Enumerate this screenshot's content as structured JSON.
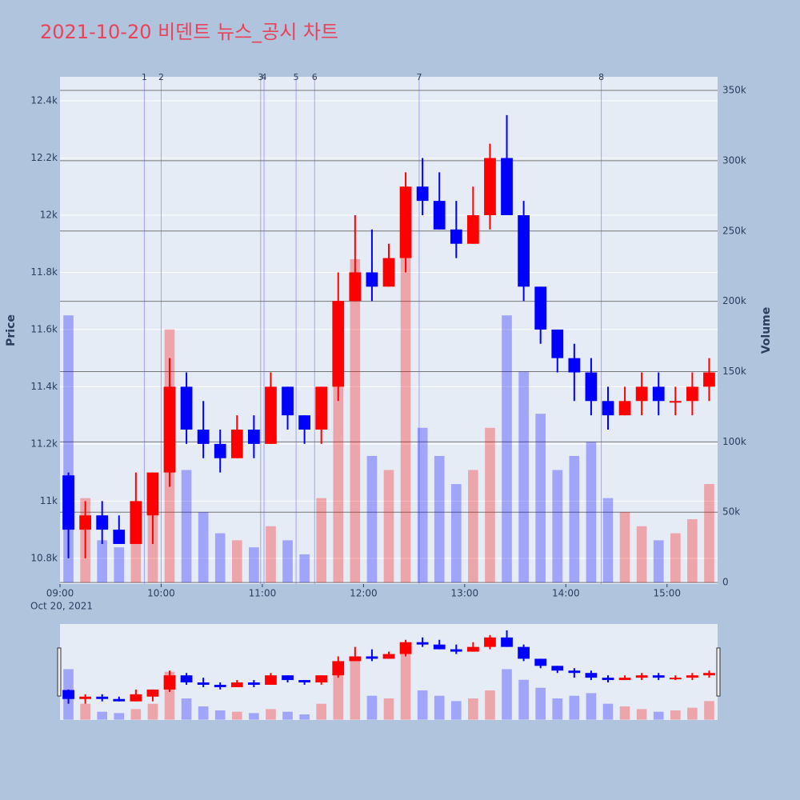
{
  "chart_data": {
    "type": "candlestick",
    "title": "2021-10-20 비덴트 뉴스_공시 차트",
    "x": [
      "09:00",
      "09:10",
      "09:20",
      "09:30",
      "09:40",
      "09:50",
      "10:00",
      "10:10",
      "10:20",
      "10:30",
      "10:40",
      "10:50",
      "11:00",
      "11:10",
      "11:20",
      "11:30",
      "11:40",
      "11:50",
      "12:00",
      "12:10",
      "12:20",
      "12:30",
      "12:40",
      "12:50",
      "13:00",
      "13:10",
      "13:20",
      "13:30",
      "13:40",
      "13:50",
      "14:00",
      "14:10",
      "14:20",
      "14:30",
      "14:40",
      "14:50",
      "15:00",
      "15:10",
      "15:20"
    ],
    "open": [
      11090,
      10900,
      10950,
      10900,
      10850,
      10950,
      11100,
      11400,
      11250,
      11200,
      11150,
      11250,
      11200,
      11400,
      11300,
      11250,
      11400,
      11700,
      11800,
      11750,
      11850,
      12100,
      12050,
      11950,
      11900,
      12000,
      12200,
      12000,
      11750,
      11600,
      11500,
      11450,
      11350,
      11300,
      11350,
      11400,
      11350,
      11350,
      11400
    ],
    "high": [
      11100,
      11000,
      11000,
      10950,
      11100,
      11100,
      11500,
      11450,
      11350,
      11250,
      11300,
      11300,
      11450,
      11400,
      11300,
      11400,
      11800,
      12000,
      11950,
      11900,
      12150,
      12200,
      12150,
      12050,
      12100,
      12250,
      12350,
      12050,
      11750,
      11600,
      11550,
      11500,
      11400,
      11400,
      11450,
      11450,
      11400,
      11450,
      11500
    ],
    "low": [
      10800,
      10800,
      10850,
      10850,
      10850,
      10850,
      11050,
      11200,
      11150,
      11100,
      11150,
      11150,
      11200,
      11250,
      11200,
      11200,
      11350,
      11700,
      11700,
      11750,
      11800,
      12000,
      11950,
      11850,
      11900,
      11950,
      12000,
      11700,
      11550,
      11450,
      11350,
      11300,
      11250,
      11300,
      11300,
      11300,
      11300,
      11300,
      11350
    ],
    "close": [
      10900,
      10950,
      10900,
      10850,
      11000,
      11100,
      11400,
      11250,
      11200,
      11150,
      11250,
      11200,
      11400,
      11300,
      11250,
      11400,
      11700,
      11800,
      11750,
      11850,
      12100,
      12050,
      11950,
      11900,
      12000,
      12200,
      12000,
      11750,
      11600,
      11500,
      11450,
      11350,
      11300,
      11350,
      11400,
      11350,
      11350,
      11400,
      11450
    ],
    "volume": [
      190000,
      60000,
      30000,
      25000,
      40000,
      60000,
      180000,
      80000,
      50000,
      35000,
      30000,
      25000,
      40000,
      30000,
      20000,
      60000,
      170000,
      230000,
      90000,
      80000,
      280000,
      110000,
      90000,
      70000,
      80000,
      110000,
      190000,
      150000,
      120000,
      80000,
      90000,
      100000,
      60000,
      50000,
      40000,
      30000,
      35000,
      45000,
      70000
    ],
    "up_color": "#ff0000",
    "down_color": "#0000ff",
    "xlim": [
      "09:00",
      "15:30"
    ],
    "xticks": [
      "09:00",
      "10:00",
      "11:00",
      "12:00",
      "13:00",
      "14:00",
      "15:00"
    ],
    "x_date": "Oct 20, 2021",
    "ylim": [
      10710,
      12484
    ],
    "yticks": [
      {
        "value": 10800,
        "label": "10.8k"
      },
      {
        "value": 11000,
        "label": "11k"
      },
      {
        "value": 11200,
        "label": "11.2k"
      },
      {
        "value": 11400,
        "label": "11.4k"
      },
      {
        "value": 11600,
        "label": "11.6k"
      },
      {
        "value": 11800,
        "label": "11.8k"
      },
      {
        "value": 12000,
        "label": "12k"
      },
      {
        "value": 12200,
        "label": "12.2k"
      },
      {
        "value": 12400,
        "label": "12.4k"
      }
    ],
    "y2lim": [
      -1100,
      359700
    ],
    "y2ticks": [
      0,
      {
        "value": 50000,
        "label": "50k"
      },
      {
        "value": 100000,
        "label": "100k"
      },
      {
        "value": 150000,
        "label": "150k"
      },
      {
        "value": 200000,
        "label": "200k"
      },
      {
        "value": 250000,
        "label": "250k"
      },
      {
        "value": 300000,
        "label": "300k"
      },
      {
        "value": 350000,
        "label": "350k"
      }
    ],
    "y_label": "Price",
    "y2_label": "Volume",
    "news": [
      {
        "label": "1",
        "x": "09:50"
      },
      {
        "label": "2",
        "x": "10:00"
      },
      {
        "label": "3",
        "x": "10:59"
      },
      {
        "label": "4",
        "x": "11:01"
      },
      {
        "label": "5",
        "x": "11:20"
      },
      {
        "label": "6",
        "x": "11:31"
      },
      {
        "label": "7",
        "x": "12:33"
      },
      {
        "label": "8",
        "x": "14:21"
      }
    ]
  }
}
